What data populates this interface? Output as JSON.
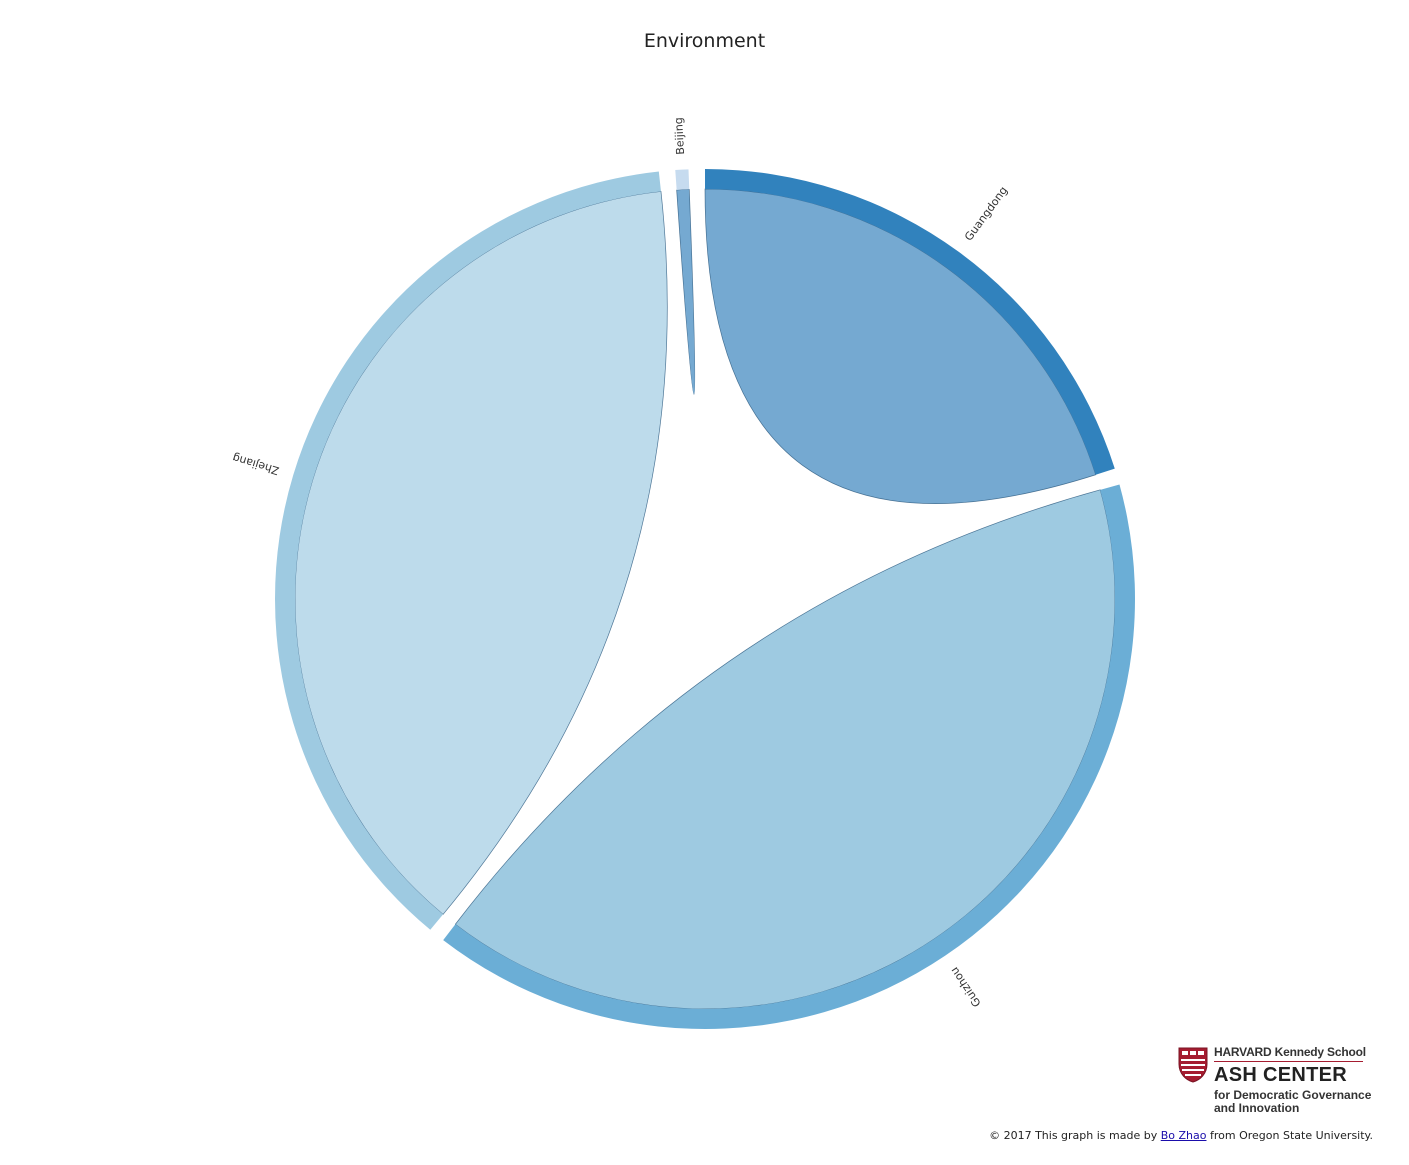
{
  "chart_data": {
    "type": "chord",
    "title": "Environment",
    "groups": [
      {
        "name": "Guangdong",
        "value": 20.5,
        "color": "#3182bd",
        "chord_color": "#75a9d1"
      },
      {
        "name": "Guizhou",
        "value": 40.5,
        "color": "#6baed6",
        "chord_color": "#9ecae1"
      },
      {
        "name": "Zhejiang",
        "value": 38.0,
        "color": "#9ecae1",
        "chord_color": "#bddbeb"
      },
      {
        "name": "Beijing",
        "value": 0.5,
        "color": "#c6dbef",
        "chord_color": "#75a9d1"
      }
    ],
    "chords": [
      {
        "group": "Guangdong",
        "from": 0.0,
        "to": 20.5
      },
      {
        "group": "Guizhou",
        "from": 0.0,
        "to": 40.5
      },
      {
        "group": "Zhejiang",
        "from": 0.0,
        "to": 38.0
      },
      {
        "group": "Beijing",
        "from": 0.0,
        "to": 0.5
      }
    ]
  },
  "logo": {
    "line1": "HARVARD Kennedy School",
    "line2": "ASH CENTER",
    "line3": "for Democratic Governance",
    "line4": "and Innovation"
  },
  "credit": {
    "prefix": "© 2017 This graph is made by ",
    "link": "Bo Zhao",
    "suffix": " from Oregon State University."
  }
}
